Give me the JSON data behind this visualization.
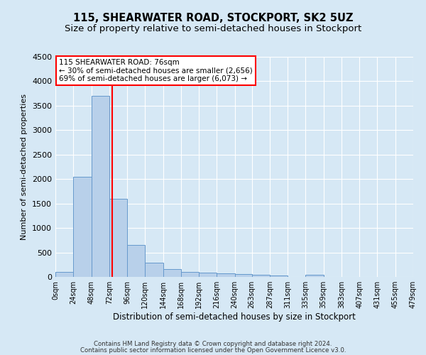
{
  "title": "115, SHEARWATER ROAD, STOCKPORT, SK2 5UZ",
  "subtitle": "Size of property relative to semi-detached houses in Stockport",
  "xlabel": "Distribution of semi-detached houses by size in Stockport",
  "ylabel": "Number of semi-detached properties",
  "footer_line1": "Contains HM Land Registry data © Crown copyright and database right 2024.",
  "footer_line2": "Contains public sector information licensed under the Open Government Licence v3.0.",
  "property_size": 76,
  "annotation_title": "115 SHEARWATER ROAD: 76sqm",
  "annotation_line1": "← 30% of semi-detached houses are smaller (2,656)",
  "annotation_line2": "69% of semi-detached houses are larger (6,073) →",
  "bin_edges": [
    0,
    24,
    48,
    72,
    96,
    120,
    144,
    168,
    192,
    216,
    240,
    263,
    287,
    311,
    335,
    359,
    383,
    407,
    431,
    455,
    479
  ],
  "bar_heights": [
    100,
    2050,
    3700,
    1600,
    650,
    285,
    155,
    105,
    90,
    72,
    55,
    42,
    30,
    0,
    42,
    0,
    0,
    0,
    0,
    0
  ],
  "bar_color": "#b8d0ea",
  "bar_edge_color": "#6699cc",
  "red_line_x": 76,
  "ylim": [
    0,
    4500
  ],
  "yticks": [
    0,
    500,
    1000,
    1500,
    2000,
    2500,
    3000,
    3500,
    4000,
    4500
  ],
  "background_color": "#d6e8f5",
  "plot_bg_color": "#d6e8f5",
  "grid_color": "#ffffff",
  "title_fontsize": 10.5,
  "subtitle_fontsize": 9.5
}
